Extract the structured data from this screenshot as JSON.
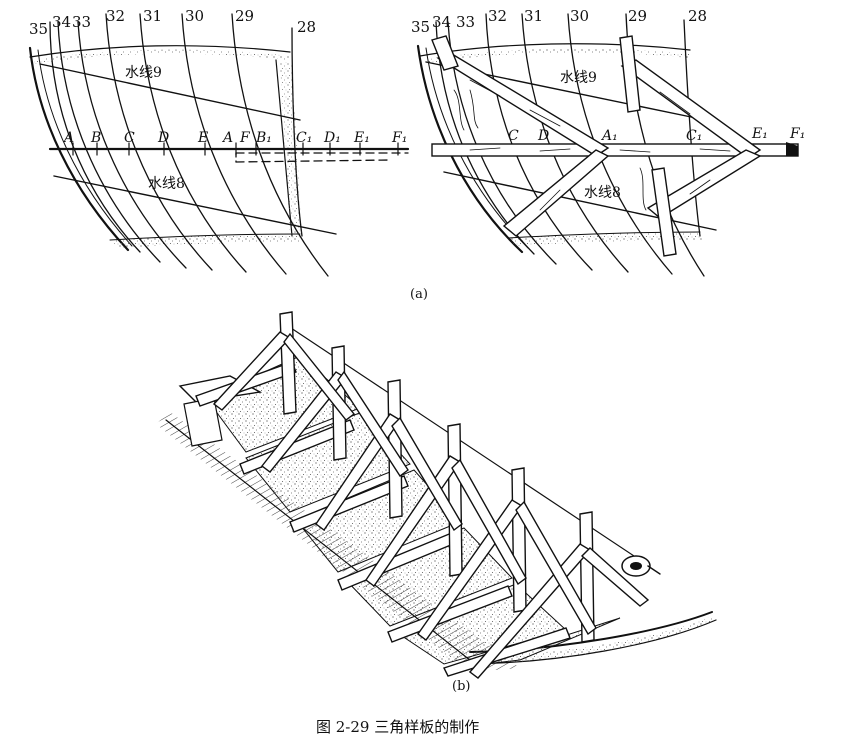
{
  "figure": {
    "caption": "图 2-29   三角样板的制作",
    "subfig_a": "(a)",
    "subfig_b": "(b)"
  },
  "left_panel": {
    "frames": [
      "35",
      "34",
      "33",
      "32",
      "31",
      "30",
      "29",
      "28"
    ],
    "waterline_upper": "水线9",
    "waterline_lower": "水线8",
    "points": [
      "A",
      "B",
      "C",
      "D",
      "E",
      "A",
      "F",
      "B₁",
      "C₁",
      "D₁",
      "E₁",
      "F₁"
    ]
  },
  "right_panel": {
    "frames": [
      "35",
      "34",
      "33",
      "32",
      "31",
      "30",
      "29",
      "28"
    ],
    "waterline_upper": "水线9",
    "waterline_lower": "水线8",
    "points": [
      "C",
      "D",
      "A₁",
      "C₁",
      "E₁",
      "F₁"
    ]
  }
}
